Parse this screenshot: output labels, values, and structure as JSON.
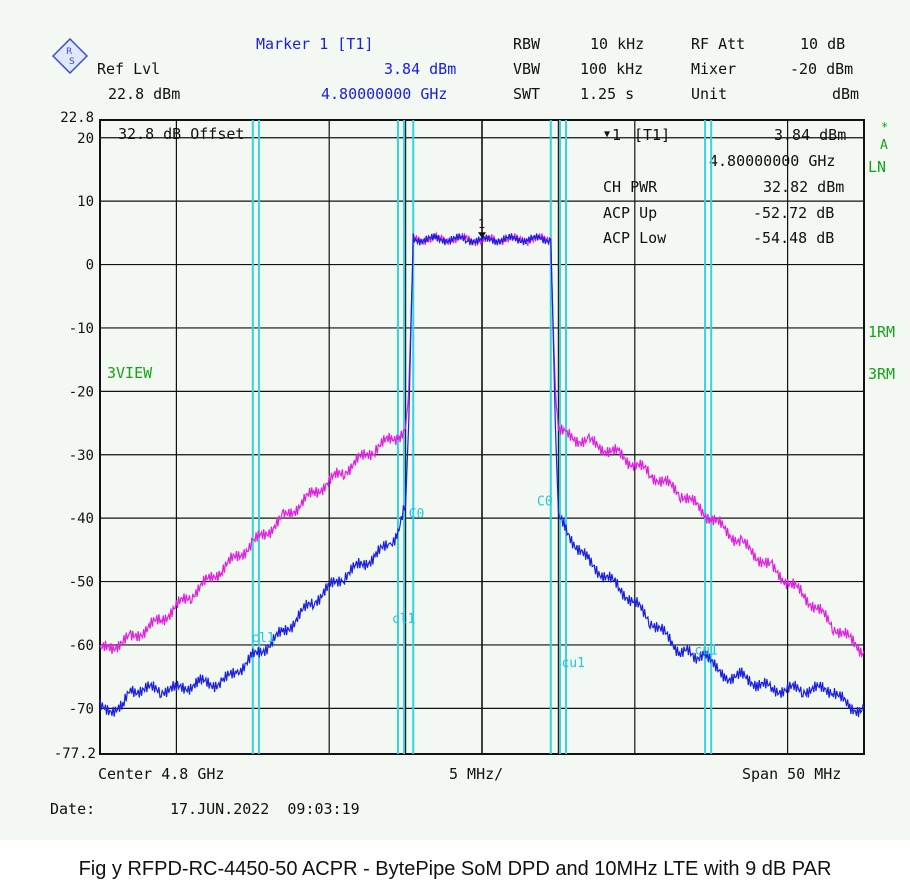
{
  "header": {
    "marker_title": "Marker 1 [T1]",
    "marker_level": "3.84 dBm",
    "marker_freq": "4.80000000 GHz",
    "ref_lvl_label": "Ref Lvl",
    "ref_lvl_value": "22.8 dBm",
    "rbw_label": "RBW",
    "rbw_value": "10 kHz",
    "vbw_label": "VBW",
    "vbw_value": "100 kHz",
    "swt_label": "SWT",
    "swt_value": "1.25 s",
    "rfatt_label": "RF Att",
    "rfatt_value": "10 dB",
    "mixer_label": "Mixer",
    "mixer_value": "-20 dBm",
    "unit_label": "Unit",
    "unit_value": "dBm"
  },
  "plot_labels": {
    "offset": "32.8 dB Offset",
    "view": "3VIEW",
    "right_a": "A",
    "right_ln": "LN",
    "right_1rm": "1RM",
    "right_3rm": "3RM"
  },
  "marker_box": {
    "m1_label": "[T1]",
    "m1_value": "3.84 dBm",
    "m1_freq": "4.80000000 GHz",
    "ch_pwr_label": "CH PWR",
    "ch_pwr_value": "32.82 dBm",
    "acp_up_label": "ACP Up",
    "acp_up_value": "-52.72 dB",
    "acp_low_label": "ACP Low",
    "acp_low_value": "-54.48 dB"
  },
  "footer": {
    "center": "Center 4.8 GHz",
    "div": "5 MHz/",
    "span": "Span 50 MHz",
    "date_label": "Date:",
    "date_value": "17.JUN.2022  09:03:19"
  },
  "caption": "Fig y RFPD-RC-4450-50 ACPR - BytePipe SoM DPD and 10MHz LTE with 9 dB PAR",
  "chart_data": {
    "type": "line",
    "xlabel": "",
    "ylabel": "",
    "x_center_ghz": 4.8,
    "x_span_mhz": 50,
    "xlim": [
      -25,
      25
    ],
    "ylim": [
      -77.2,
      22.8
    ],
    "y_ticks": [
      20,
      10,
      0,
      -10,
      -20,
      -30,
      -40,
      -50,
      -60,
      -70
    ],
    "y_top_label": "22.8",
    "y_bottom_label": "-77.2",
    "grid": true,
    "channel_lines_mhz": {
      "ch_edges": [
        -4.5,
        4.5
      ],
      "cl_edges": [
        -15,
        -5.5
      ],
      "cu_edges": [
        5.5,
        15
      ],
      "outer": [
        -14.6,
        14.6
      ],
      "inner": [
        -5.1,
        5.1
      ]
    },
    "channel_labels": [
      {
        "text": "C0",
        "x": -4.8,
        "y": -40
      },
      {
        "text": "C0",
        "x": 3.6,
        "y": -38
      },
      {
        "text": "cl1",
        "x": -15.1,
        "y": -59.5
      },
      {
        "text": "cl1",
        "x": -5.9,
        "y": -56.5
      },
      {
        "text": "cu1",
        "x": 5.2,
        "y": -63.5
      },
      {
        "text": "cu1",
        "x": 13.9,
        "y": -61.5
      }
    ],
    "marker": {
      "label": "1",
      "x": 0,
      "y": 3.84
    },
    "series": [
      {
        "name": "",
        "color": "#e020e0",
        "x": [
          -25,
          -23,
          -21,
          -19,
          -17,
          -15,
          -13,
          -11,
          -9,
          -7,
          -5.5,
          -5,
          -4.8,
          -4.6,
          -4.5,
          -3,
          -1,
          0,
          1,
          3,
          4.5,
          4.6,
          4.8,
          5,
          5.5,
          7,
          9,
          11,
          13,
          15,
          17,
          19,
          21,
          23,
          25
        ],
        "y": [
          -61,
          -59,
          -56,
          -52,
          -48,
          -44,
          -40,
          -36,
          -32.5,
          -29,
          -27,
          -26,
          -20,
          -5,
          4,
          4,
          4,
          3.8,
          4,
          4,
          4,
          -5,
          -20,
          -26,
          -27,
          -28,
          -30,
          -33,
          -36,
          -40,
          -44,
          -48,
          -52,
          -57,
          -61
        ]
      },
      {
        "name": "",
        "color": "#1a20e0",
        "x": [
          -25,
          -23.5,
          -23,
          -21,
          -20,
          -18.5,
          -17,
          -16,
          -15,
          -13,
          -11,
          -9,
          -7,
          -6,
          -5.5,
          -5,
          -4.8,
          -4.6,
          -4.5,
          -3,
          -1,
          0,
          1,
          3,
          4.5,
          4.6,
          4.8,
          5,
          5.5,
          7,
          9,
          11,
          13,
          14.6,
          16,
          17,
          18,
          19,
          21,
          23,
          24,
          25
        ],
        "y": [
          -70,
          -70,
          -67,
          -67,
          -67,
          -66,
          -66,
          -64,
          -62,
          -58,
          -53,
          -49,
          -46,
          -44,
          -42,
          -38,
          -25,
          -5,
          4,
          4,
          4,
          3.8,
          4,
          4,
          4,
          -5,
          -25,
          -40,
          -42,
          -47,
          -51,
          -56,
          -61,
          -62,
          -65,
          -65,
          -66,
          -67,
          -67,
          -67,
          -70,
          -70
        ]
      }
    ]
  }
}
